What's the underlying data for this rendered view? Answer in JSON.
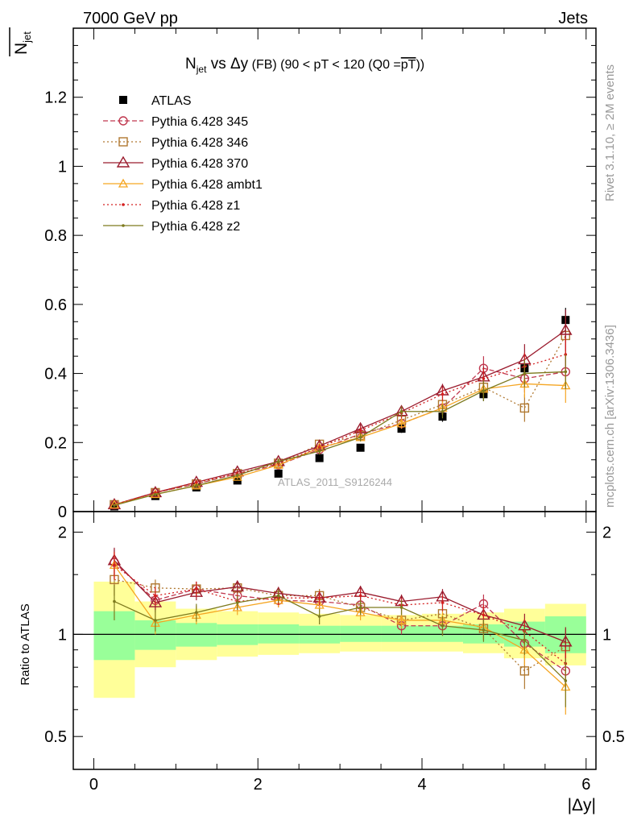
{
  "header": {
    "left": "7000 GeV pp",
    "right": "Jets"
  },
  "side_labels": {
    "rivet": "Rivet 3.1.10, ≥ 2M events",
    "mcplots": "mcplots.cern.ch [arXiv:1306.3436]"
  },
  "chart_data": [
    {
      "type": "scatter",
      "panel": "main",
      "title_parts": {
        "n": "N",
        "n_sub": "jet",
        "vs": " vs ",
        "dy": "Δy",
        "rest": " (FB) (90 < pT < 120 (Q0 =",
        "pt_bar": "pT",
        "close": "))"
      },
      "ylabel_parts": {
        "n": "N",
        "n_sub": "jet"
      },
      "xlabel": "|Δy|",
      "watermark": "ATLAS_2011_S9126244",
      "xlim": [
        -0.25,
        6.12
      ],
      "ylim": [
        0,
        1.4
      ],
      "yticks": [
        0,
        0.2,
        0.4,
        0.6,
        0.8,
        1,
        1.2
      ],
      "ytick_labels": [
        "0",
        "0.2",
        "0.4",
        "0.6",
        "0.8",
        "1",
        "1.2"
      ],
      "grid": false,
      "legend_position": "top-left",
      "x": [
        0.25,
        0.75,
        1.25,
        1.75,
        2.25,
        2.75,
        3.25,
        3.75,
        4.25,
        4.75,
        5.25,
        5.75
      ],
      "series": [
        {
          "name": "ATLAS",
          "color": "#000000",
          "marker": "filled-square",
          "line": "none",
          "values": [
            0.015,
            0.045,
            0.07,
            0.09,
            0.11,
            0.155,
            0.185,
            0.24,
            0.275,
            0.34,
            0.415,
            0.555
          ],
          "yerr": [
            0.002,
            0.004,
            0.005,
            0.006,
            0.007,
            0.008,
            0.01,
            0.012,
            0.015,
            0.02,
            0.025,
            0.035
          ]
        },
        {
          "name": "Pythia 6.428 345",
          "color": "#c0384f",
          "marker": "open-circle",
          "line": "dashed",
          "values": [
            0.02,
            0.055,
            0.08,
            0.11,
            0.135,
            0.18,
            0.225,
            0.255,
            0.3,
            0.415,
            0.385,
            0.405
          ],
          "yerr": [
            0.003,
            0.004,
            0.005,
            0.006,
            0.008,
            0.01,
            0.012,
            0.015,
            0.02,
            0.035,
            0.04,
            0.05
          ]
        },
        {
          "name": "Pythia 6.428 346",
          "color": "#b07830",
          "marker": "open-square",
          "line": "dotted",
          "values": [
            0.02,
            0.055,
            0.08,
            0.11,
            0.14,
            0.195,
            0.22,
            0.265,
            0.31,
            0.36,
            0.3,
            0.51
          ],
          "yerr": [
            0.003,
            0.004,
            0.005,
            0.006,
            0.008,
            0.01,
            0.012,
            0.015,
            0.02,
            0.03,
            0.04,
            0.06
          ]
        },
        {
          "name": "Pythia 6.428 370",
          "color": "#9b1c2e",
          "marker": "open-triangle",
          "line": "solid",
          "values": [
            0.02,
            0.055,
            0.085,
            0.115,
            0.145,
            0.19,
            0.24,
            0.29,
            0.35,
            0.39,
            0.44,
            0.525
          ],
          "yerr": [
            0.003,
            0.004,
            0.005,
            0.006,
            0.008,
            0.01,
            0.012,
            0.015,
            0.02,
            0.03,
            0.045,
            0.06
          ]
        },
        {
          "name": "Pythia 6.428 ambt1",
          "color": "#f5a623",
          "marker": "open-triangle-small",
          "line": "solid",
          "values": [
            0.02,
            0.05,
            0.075,
            0.1,
            0.135,
            0.185,
            0.215,
            0.255,
            0.3,
            0.355,
            0.37,
            0.365
          ],
          "yerr": [
            0.003,
            0.004,
            0.005,
            0.006,
            0.008,
            0.01,
            0.012,
            0.015,
            0.02,
            0.03,
            0.04,
            0.05
          ]
        },
        {
          "name": "Pythia 6.428 z1",
          "color": "#d42020",
          "marker": "small-dot",
          "line": "dotted",
          "values": [
            0.02,
            0.055,
            0.085,
            0.11,
            0.14,
            0.185,
            0.235,
            0.285,
            0.34,
            0.385,
            0.42,
            0.455
          ],
          "yerr": [
            0.003,
            0.004,
            0.005,
            0.006,
            0.008,
            0.01,
            0.012,
            0.015,
            0.02,
            0.03,
            0.04,
            0.05
          ]
        },
        {
          "name": "Pythia 6.428 z2",
          "color": "#7d7a1e",
          "marker": "small-dot",
          "line": "solid",
          "values": [
            0.018,
            0.05,
            0.075,
            0.105,
            0.145,
            0.175,
            0.215,
            0.29,
            0.29,
            0.35,
            0.4,
            0.405
          ],
          "yerr": [
            0.003,
            0.004,
            0.005,
            0.006,
            0.008,
            0.01,
            0.012,
            0.015,
            0.02,
            0.03,
            0.04,
            0.05
          ]
        }
      ]
    },
    {
      "type": "scatter",
      "panel": "ratio",
      "ylabel": "Ratio to ATLAS",
      "xlabel": "|Δy|",
      "xlim": [
        -0.25,
        6.12
      ],
      "ylim": [
        0.4,
        2.3
      ],
      "log_y": true,
      "yticks": [
        0.5,
        1,
        2
      ],
      "ytick_labels": [
        "0.5",
        "1",
        "2"
      ],
      "xticks": [
        0,
        2,
        4,
        6
      ],
      "xtick_labels": [
        "0",
        "2",
        "4",
        "6"
      ],
      "reference_line": 1,
      "bands": {
        "edges": [
          0,
          0.5,
          1,
          1.5,
          2,
          2.5,
          3,
          3.5,
          4,
          4.5,
          5,
          5.5,
          6
        ],
        "inner": {
          "color": "#99ff99",
          "lo": [
            0.84,
            0.9,
            0.92,
            0.93,
            0.94,
            0.94,
            0.95,
            0.95,
            0.95,
            0.94,
            0.92,
            0.88
          ],
          "hi": [
            1.17,
            1.1,
            1.08,
            1.07,
            1.07,
            1.06,
            1.06,
            1.06,
            1.06,
            1.07,
            1.09,
            1.13
          ]
        },
        "outer": {
          "color": "#ffff99",
          "lo": [
            0.65,
            0.8,
            0.84,
            0.86,
            0.87,
            0.88,
            0.89,
            0.89,
            0.89,
            0.88,
            0.85,
            0.81
          ],
          "hi": [
            1.43,
            1.25,
            1.19,
            1.17,
            1.16,
            1.15,
            1.14,
            1.14,
            1.15,
            1.16,
            1.19,
            1.23
          ]
        }
      },
      "x": [
        0.25,
        0.75,
        1.25,
        1.75,
        2.25,
        2.75,
        3.25,
        3.75,
        4.25,
        4.75,
        5.25,
        5.75
      ],
      "series": [
        {
          "name": "Pythia 6.428 345",
          "color": "#c0384f",
          "marker": "open-circle",
          "line": "dashed",
          "values": [
            1.63,
            1.26,
            1.36,
            1.3,
            1.26,
            1.25,
            1.22,
            1.06,
            1.06,
            1.23,
            0.94,
            0.78
          ],
          "yerr": [
            0.15,
            0.08,
            0.07,
            0.06,
            0.06,
            0.06,
            0.06,
            0.06,
            0.07,
            0.08,
            0.09,
            0.1
          ]
        },
        {
          "name": "Pythia 6.428 346",
          "color": "#b07830",
          "marker": "open-square",
          "line": "dotted",
          "values": [
            1.45,
            1.37,
            1.36,
            1.37,
            1.3,
            1.3,
            1.2,
            1.1,
            1.15,
            1.04,
            0.78,
            0.92
          ],
          "yerr": [
            0.15,
            0.08,
            0.07,
            0.06,
            0.06,
            0.06,
            0.06,
            0.06,
            0.07,
            0.08,
            0.09,
            0.12
          ]
        },
        {
          "name": "Pythia 6.428 370",
          "color": "#9b1c2e",
          "marker": "open-triangle",
          "line": "solid",
          "values": [
            1.65,
            1.24,
            1.33,
            1.38,
            1.32,
            1.28,
            1.33,
            1.25,
            1.29,
            1.14,
            1.06,
            0.95
          ],
          "yerr": [
            0.15,
            0.08,
            0.07,
            0.06,
            0.06,
            0.06,
            0.06,
            0.06,
            0.07,
            0.08,
            0.09,
            0.1
          ]
        },
        {
          "name": "Pythia 6.428 ambt1",
          "color": "#f5a623",
          "marker": "open-triangle-small",
          "line": "solid",
          "values": [
            1.6,
            1.08,
            1.14,
            1.2,
            1.26,
            1.22,
            1.16,
            1.1,
            1.1,
            1.05,
            0.9,
            0.7
          ],
          "yerr": [
            0.15,
            0.08,
            0.07,
            0.06,
            0.06,
            0.06,
            0.06,
            0.06,
            0.07,
            0.08,
            0.09,
            0.12
          ]
        },
        {
          "name": "Pythia 6.428 z1",
          "color": "#d42020",
          "marker": "small-dot",
          "line": "dotted",
          "values": [
            1.6,
            1.3,
            1.36,
            1.25,
            1.28,
            1.28,
            1.3,
            1.22,
            1.24,
            1.14,
            1.02,
            0.82
          ],
          "yerr": [
            0.15,
            0.08,
            0.07,
            0.06,
            0.06,
            0.06,
            0.06,
            0.06,
            0.07,
            0.08,
            0.09,
            0.1
          ]
        },
        {
          "name": "Pythia 6.428 z2",
          "color": "#7d7a1e",
          "marker": "small-dot",
          "line": "solid",
          "values": [
            1.25,
            1.1,
            1.16,
            1.24,
            1.3,
            1.13,
            1.2,
            1.2,
            1.06,
            1.03,
            0.96,
            0.73
          ],
          "yerr": [
            0.15,
            0.08,
            0.07,
            0.06,
            0.06,
            0.06,
            0.06,
            0.06,
            0.07,
            0.08,
            0.09,
            0.12
          ]
        }
      ]
    }
  ]
}
